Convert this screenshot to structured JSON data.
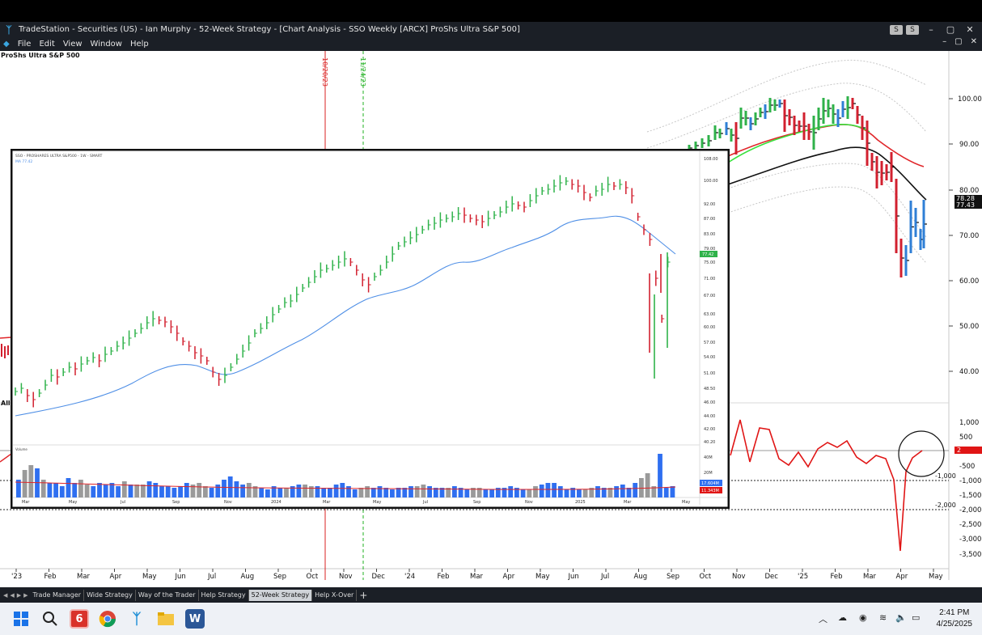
{
  "window": {
    "app_name": "TradeStation",
    "title": "TradeStation  - Securities (US) - Ian Murphy - 52-Week Strategy - [Chart Analysis - SSO Weekly [ARCX] ProShs Ultra S&P 500]",
    "buttons": [
      "S",
      "S",
      "–",
      "▢",
      "✕"
    ]
  },
  "menu": {
    "items": [
      "File",
      "Edit",
      "View",
      "Window",
      "Help"
    ],
    "right": [
      "–",
      "▢",
      "✕"
    ]
  },
  "main_chart": {
    "symbol_title": "ProShs Ultra S&P 500",
    "price_ticks": [
      "100.00",
      "90.00",
      "80.00",
      "70.00",
      "60.00",
      "50.00",
      "40.00"
    ],
    "price_badges": [
      "78.28",
      "77.43"
    ],
    "indicator_ticks": [
      "1,000",
      "500",
      "-500",
      "-1,000",
      "-1,500",
      "-2,000",
      "-2,500",
      "-3,000",
      "-3,500"
    ],
    "indicator_badge": "2",
    "level_labels": [
      "-1,000",
      "-2,000"
    ],
    "left_label": "All",
    "markers": [
      {
        "label": "10/20/23",
        "color": "#d92020"
      },
      {
        "label": "11/24/23",
        "color": "#20b020"
      }
    ],
    "x_labels": [
      "'23",
      "Feb",
      "Mar",
      "Apr",
      "May",
      "Jun",
      "Jul",
      "Aug",
      "Sep",
      "Oct",
      "Nov",
      "Dec",
      "'24",
      "Feb",
      "Mar",
      "Apr",
      "May",
      "Jun",
      "Jul",
      "Aug",
      "Sep",
      "Oct",
      "Nov",
      "Dec",
      "'25",
      "Feb",
      "Mar",
      "Apr",
      "May"
    ]
  },
  "inset_chart": {
    "header": "SSO - PROSHARES ULTRA S&P500 - 1W - SMART",
    "header2": "MA 77.42",
    "price_ticks": [
      "108.00",
      "100.00",
      "92.00",
      "87.00",
      "83.00",
      "79.00",
      "75.00",
      "71.00",
      "67.00",
      "63.00",
      "60.00",
      "57.00",
      "54.00",
      "51.00",
      "48.50",
      "46.00",
      "44.00",
      "42.00",
      "40.20"
    ],
    "price_badge": "77.42",
    "volume_label": "Volume",
    "volume_ticks": [
      "40M",
      "20M"
    ],
    "volume_badges": [
      "17.604M",
      "11.343M"
    ],
    "x_labels": [
      "Mar",
      "May",
      "Jul",
      "Sep",
      "Nov",
      "2024",
      "Mar",
      "May",
      "Jul",
      "Sep",
      "Nov",
      "2025",
      "Mar",
      "May"
    ]
  },
  "tabs": {
    "items": [
      "Trade Manager",
      "Wide Strategy",
      "Way of the Trader",
      "Help Strategy",
      "52-Week Strategy",
      "Help X-Over"
    ],
    "active_index": 4
  },
  "taskbar": {
    "time": "2:41 PM",
    "date": "4/25/2025",
    "apps": [
      "windows-start",
      "search",
      "pdf-app",
      "chrome",
      "tradestation",
      "file-explorer",
      "word"
    ]
  },
  "colors": {
    "up_bar": "#2fb24a",
    "down_bar": "#d2202f",
    "blue_bar": "#2f7fd6",
    "ma_red": "#e0262a",
    "ma_black": "#111111",
    "ma_green": "#36e03a",
    "inset_ma": "#4f8fe6",
    "volume_up": "#2f6ff0",
    "volume_gray": "#9a9a9a"
  }
}
